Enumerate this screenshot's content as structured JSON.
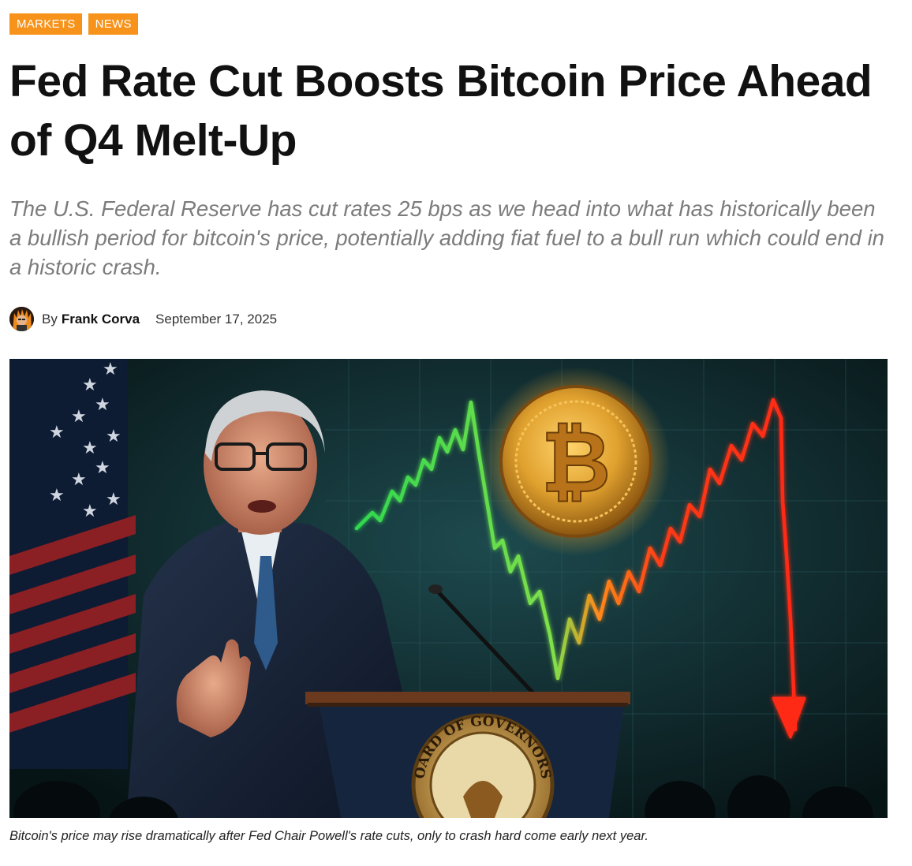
{
  "tags": [
    "MARKETS",
    "NEWS"
  ],
  "article": {
    "title": "Fed Rate Cut Boosts Bitcoin Price Ahead of Q4 Melt-Up",
    "dek": "The U.S. Federal Reserve has cut rates 25 bps as we head into what has historically been a bullish period for bitcoin's price, potentially adding fiat fuel to a bull run which could end in a historic crash.",
    "byline_prefix": "By",
    "author": "Frank Corva",
    "date": "September 17, 2025",
    "caption": "Bitcoin's price may rise dramatically after Fed Chair Powell's rate cuts, only to crash hard come early next year."
  },
  "hero": {
    "seal_text": "OARD OF GOVERNORS",
    "colors": {
      "background": "#0f2a2e",
      "chart_green": "#3fe05a",
      "chart_red": "#ff2a14",
      "coin_gold": "#e0a12e"
    }
  },
  "colors": {
    "tag_bg": "#f7931a",
    "dek_text": "#7c7c7c"
  }
}
